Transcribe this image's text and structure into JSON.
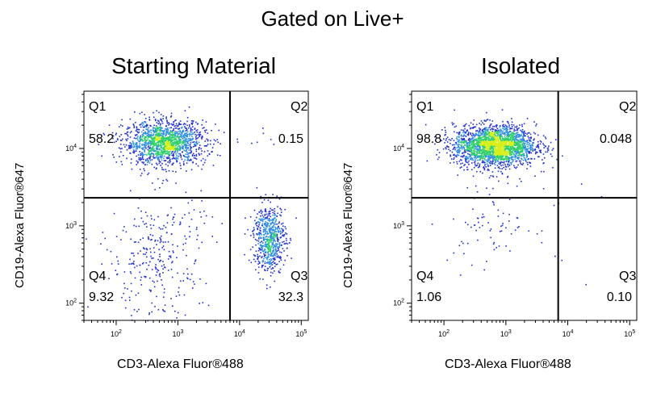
{
  "figure": {
    "title": "Gated on Live+"
  },
  "chart_data": [
    {
      "type": "scatter",
      "subtype": "flow-cytometry-density-dot-plot",
      "title": "Starting Material",
      "xlabel": "CD3-Alexa Fluor®488",
      "ylabel": "CD19-Alexa Fluor®647",
      "xscale": "log",
      "yscale": "log",
      "xlim": [
        30,
        130000
      ],
      "ylim": [
        60,
        55000
      ],
      "x_ticks": [
        100,
        1000,
        10000,
        100000
      ],
      "y_ticks": [
        100,
        1000,
        10000
      ],
      "gate": {
        "x": 7000,
        "y": 2300
      },
      "quadrants": [
        {
          "name": "Q1",
          "percent": "58.2",
          "position": "top-left"
        },
        {
          "name": "Q2",
          "percent": "0.15",
          "position": "top-right"
        },
        {
          "name": "Q3",
          "percent": "32.3",
          "position": "bottom-right"
        },
        {
          "name": "Q4",
          "percent": "9.32",
          "position": "bottom-left"
        }
      ],
      "populations": [
        {
          "center": [
            600,
            12000
          ],
          "spread": [
            0.33,
            0.14
          ],
          "count": 1500
        },
        {
          "center": [
            30000,
            700
          ],
          "spread": [
            0.13,
            0.22
          ],
          "count": 650
        },
        {
          "center": [
            450,
            500
          ],
          "spread": [
            0.38,
            0.38
          ],
          "count": 260
        },
        {
          "center": [
            400,
            150
          ],
          "spread": [
            0.4,
            0.3
          ],
          "count": 60
        },
        {
          "center": [
            25000,
            10000
          ],
          "spread": [
            0.2,
            0.2
          ],
          "count": 6
        }
      ]
    },
    {
      "type": "scatter",
      "subtype": "flow-cytometry-density-dot-plot",
      "title": "Isolated",
      "xlabel": "CD3-Alexa Fluor®488",
      "ylabel": "CD19-Alexa Fluor®647",
      "xscale": "log",
      "yscale": "log",
      "xlim": [
        30,
        130000
      ],
      "ylim": [
        60,
        55000
      ],
      "x_ticks": [
        100,
        1000,
        10000,
        100000
      ],
      "y_ticks": [
        100,
        1000,
        10000
      ],
      "gate": {
        "x": 7000,
        "y": 2300
      },
      "quadrants": [
        {
          "name": "Q1",
          "percent": "98.8",
          "position": "top-left"
        },
        {
          "name": "Q2",
          "percent": "0.048",
          "position": "top-right"
        },
        {
          "name": "Q3",
          "percent": "0.10",
          "position": "bottom-right"
        },
        {
          "name": "Q4",
          "percent": "1.06",
          "position": "bottom-left"
        }
      ],
      "populations": [
        {
          "center": [
            650,
            11000
          ],
          "spread": [
            0.33,
            0.13
          ],
          "count": 2300
        },
        {
          "center": [
            600,
            1200
          ],
          "spread": [
            0.35,
            0.3
          ],
          "count": 90
        },
        {
          "center": [
            20000,
            1500
          ],
          "spread": [
            0.4,
            0.4
          ],
          "count": 6
        }
      ]
    }
  ],
  "colors": {
    "sparse": "#1f2fd0",
    "low": "#2f8fe0",
    "mid": "#2dcf6a",
    "high": "#d8ee1a",
    "axis": "#000000",
    "gate": "#000000"
  }
}
